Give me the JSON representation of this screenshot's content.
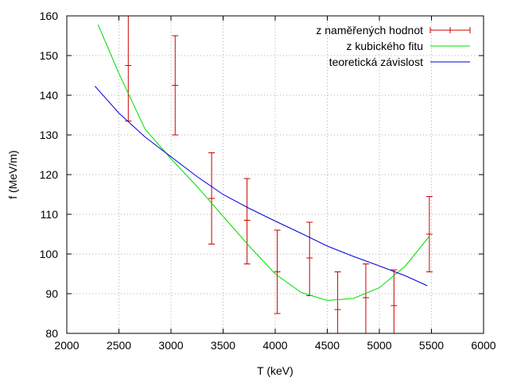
{
  "chart_data": {
    "type": "line",
    "xlabel": "T (keV)",
    "ylabel": "f (MeV/m)",
    "xlim": [
      2000,
      6000
    ],
    "ylim": [
      80,
      160
    ],
    "xticks": [
      2000,
      2500,
      3000,
      3500,
      4000,
      4500,
      5000,
      5500,
      6000
    ],
    "yticks": [
      80,
      90,
      100,
      110,
      120,
      130,
      140,
      150,
      160
    ],
    "grid": true,
    "legend_position": "top-right",
    "series": [
      {
        "name": "z naměřených hodnot",
        "kind": "errorbar",
        "color": "#cc0000",
        "points": [
          {
            "x": 2590,
            "y": 147.5,
            "ylow": 133.5,
            "yhigh": 161.5
          },
          {
            "x": 3040,
            "y": 142.5,
            "ylow": 130.0,
            "yhigh": 155.0
          },
          {
            "x": 3390,
            "y": 114.0,
            "ylow": 102.5,
            "yhigh": 125.5
          },
          {
            "x": 3730,
            "y": 108.5,
            "ylow": 97.5,
            "yhigh": 119.0
          },
          {
            "x": 4020,
            "y": 95.5,
            "ylow": 85.0,
            "yhigh": 106.0
          },
          {
            "x": 4330,
            "y": 99.0,
            "ylow": 89.5,
            "yhigh": 108.0
          },
          {
            "x": 4600,
            "y": 86.0,
            "ylow": 76.5,
            "yhigh": 95.5
          },
          {
            "x": 4870,
            "y": 89.0,
            "ylow": 80.0,
            "yhigh": 97.5
          },
          {
            "x": 5140,
            "y": 87.0,
            "ylow": 78.0,
            "yhigh": 96.0
          },
          {
            "x": 5480,
            "y": 105.0,
            "ylow": 95.5,
            "yhigh": 114.5
          }
        ]
      },
      {
        "name": "z kubického fitu",
        "kind": "line",
        "color": "#00dd00",
        "points": [
          {
            "x": 2300,
            "y": 157.8
          },
          {
            "x": 2500,
            "y": 145.5
          },
          {
            "x": 2750,
            "y": 131.5
          },
          {
            "x": 3000,
            "y": 124.0
          },
          {
            "x": 3250,
            "y": 117.0
          },
          {
            "x": 3500,
            "y": 109.5
          },
          {
            "x": 3750,
            "y": 102.0
          },
          {
            "x": 4000,
            "y": 95.0
          },
          {
            "x": 4250,
            "y": 90.3
          },
          {
            "x": 4500,
            "y": 88.3
          },
          {
            "x": 4750,
            "y": 88.8
          },
          {
            "x": 5000,
            "y": 91.5
          },
          {
            "x": 5250,
            "y": 97.0
          },
          {
            "x": 5480,
            "y": 104.5
          }
        ]
      },
      {
        "name": "teoretická závislost",
        "kind": "line",
        "color": "#0000dd",
        "points": [
          {
            "x": 2270,
            "y": 142.3
          },
          {
            "x": 2500,
            "y": 135.5
          },
          {
            "x": 2750,
            "y": 129.5
          },
          {
            "x": 3000,
            "y": 124.5
          },
          {
            "x": 3250,
            "y": 119.5
          },
          {
            "x": 3500,
            "y": 115.0
          },
          {
            "x": 3750,
            "y": 111.5
          },
          {
            "x": 4000,
            "y": 108.3
          },
          {
            "x": 4250,
            "y": 105.2
          },
          {
            "x": 4500,
            "y": 102.0
          },
          {
            "x": 4750,
            "y": 99.4
          },
          {
            "x": 5000,
            "y": 97.0
          },
          {
            "x": 5250,
            "y": 94.5
          },
          {
            "x": 5460,
            "y": 92.0
          }
        ]
      }
    ]
  }
}
